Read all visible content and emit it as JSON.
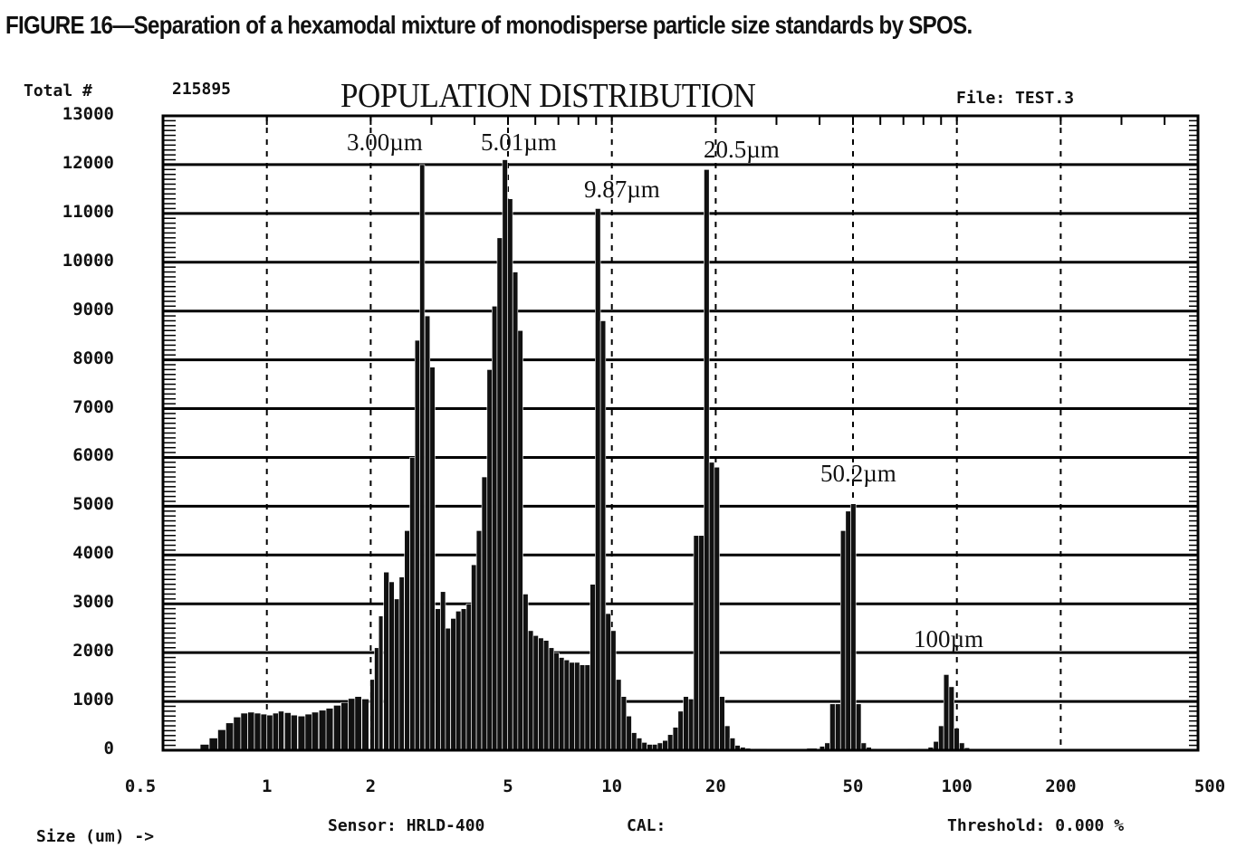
{
  "caption": "FIGURE 16—Separation of a hexamodal mixture of monodisperse particle size standards by SPOS.",
  "header": {
    "total_label": "Total #",
    "total_value": "215895",
    "file_label": "File: TEST.3"
  },
  "footer": {
    "xaxis_label": "Size (um) ->",
    "sensor": "Sensor: HRLD-400",
    "cal": "CAL:",
    "threshold": "Threshold: 0.000 %"
  },
  "colors": {
    "bars": "#111111",
    "grid": "#000000",
    "background": "#ffffff"
  },
  "chart_data": {
    "type": "bar",
    "title": "POPULATION DISTRIBUTION",
    "xscale": "log",
    "xlim": [
      0.5,
      500
    ],
    "ylim": [
      0,
      13000
    ],
    "grid": true,
    "x_ticks": [
      "0.5",
      "1",
      "2",
      "5",
      "10",
      "20",
      "50",
      "100",
      "200",
      "500"
    ],
    "y_ticks": [
      "0",
      "1000",
      "2000",
      "3000",
      "4000",
      "5000",
      "6000",
      "7000",
      "8000",
      "9000",
      "10000",
      "11000",
      "12000",
      "13000"
    ],
    "annotations": [
      "3.00µm",
      "5.01µm",
      "9.87µm",
      "20.5µm",
      "50.2µm",
      "100µm"
    ],
    "bins": [
      [
        0.62,
        30
      ],
      [
        0.66,
        120
      ],
      [
        0.7,
        250
      ],
      [
        0.74,
        420
      ],
      [
        0.78,
        560
      ],
      [
        0.82,
        680
      ],
      [
        0.86,
        760
      ],
      [
        0.9,
        780
      ],
      [
        0.94,
        760
      ],
      [
        0.98,
        740
      ],
      [
        1.02,
        720
      ],
      [
        1.06,
        760
      ],
      [
        1.1,
        800
      ],
      [
        1.15,
        770
      ],
      [
        1.2,
        720
      ],
      [
        1.26,
        700
      ],
      [
        1.32,
        740
      ],
      [
        1.38,
        780
      ],
      [
        1.45,
        820
      ],
      [
        1.52,
        860
      ],
      [
        1.6,
        920
      ],
      [
        1.68,
        980
      ],
      [
        1.76,
        1060
      ],
      [
        1.84,
        1100
      ],
      [
        1.93,
        1050
      ],
      [
        2.02,
        1450
      ],
      [
        2.08,
        2100
      ],
      [
        2.14,
        2750
      ],
      [
        2.22,
        3650
      ],
      [
        2.3,
        3450
      ],
      [
        2.38,
        3100
      ],
      [
        2.46,
        3550
      ],
      [
        2.55,
        4500
      ],
      [
        2.64,
        6000
      ],
      [
        2.73,
        8400
      ],
      [
        2.82,
        12000
      ],
      [
        2.92,
        8900
      ],
      [
        3.02,
        7850
      ],
      [
        3.13,
        2900
      ],
      [
        3.24,
        3250
      ],
      [
        3.35,
        2500
      ],
      [
        3.47,
        2700
      ],
      [
        3.59,
        2850
      ],
      [
        3.72,
        2900
      ],
      [
        3.85,
        3000
      ],
      [
        3.98,
        3800
      ],
      [
        4.12,
        4500
      ],
      [
        4.27,
        5600
      ],
      [
        4.42,
        7800
      ],
      [
        4.57,
        9100
      ],
      [
        4.73,
        10500
      ],
      [
        4.9,
        12100
      ],
      [
        5.07,
        11300
      ],
      [
        5.25,
        9800
      ],
      [
        5.43,
        8600
      ],
      [
        5.62,
        3200
      ],
      [
        5.82,
        2450
      ],
      [
        6.02,
        2350
      ],
      [
        6.23,
        2300
      ],
      [
        6.45,
        2250
      ],
      [
        6.68,
        2100
      ],
      [
        6.91,
        2000
      ],
      [
        7.15,
        1900
      ],
      [
        7.4,
        1850
      ],
      [
        7.66,
        1800
      ],
      [
        7.93,
        1800
      ],
      [
        8.21,
        1750
      ],
      [
        8.5,
        1750
      ],
      [
        8.8,
        3400
      ],
      [
        9.11,
        11100
      ],
      [
        9.43,
        8800
      ],
      [
        9.76,
        2800
      ],
      [
        10.1,
        2450
      ],
      [
        10.46,
        1450
      ],
      [
        10.83,
        1100
      ],
      [
        11.21,
        700
      ],
      [
        11.6,
        360
      ],
      [
        12.01,
        250
      ],
      [
        12.43,
        160
      ],
      [
        12.87,
        120
      ],
      [
        13.32,
        120
      ],
      [
        13.79,
        150
      ],
      [
        14.27,
        200
      ],
      [
        14.77,
        320
      ],
      [
        15.29,
        470
      ],
      [
        15.83,
        800
      ],
      [
        16.39,
        1100
      ],
      [
        16.96,
        1050
      ],
      [
        17.56,
        4400
      ],
      [
        18.18,
        4400
      ],
      [
        18.82,
        11900
      ],
      [
        19.48,
        5900
      ],
      [
        20.16,
        5800
      ],
      [
        20.87,
        1100
      ],
      [
        21.61,
        500
      ],
      [
        22.37,
        250
      ],
      [
        23.15,
        100
      ],
      [
        23.97,
        60
      ],
      [
        24.81,
        40
      ],
      [
        27.0,
        30
      ],
      [
        32.0,
        20
      ],
      [
        38.0,
        40
      ],
      [
        40.7,
        80
      ],
      [
        42.1,
        150
      ],
      [
        43.6,
        950
      ],
      [
        45.2,
        950
      ],
      [
        46.8,
        4500
      ],
      [
        48.4,
        4900
      ],
      [
        50.1,
        5050
      ],
      [
        51.9,
        950
      ],
      [
        53.7,
        150
      ],
      [
        55.6,
        60
      ],
      [
        57.5,
        30
      ],
      [
        65.0,
        20
      ],
      [
        75.0,
        30
      ],
      [
        84.0,
        60
      ],
      [
        87.0,
        180
      ],
      [
        90.0,
        500
      ],
      [
        93.2,
        1550
      ],
      [
        96.5,
        1300
      ],
      [
        99.9,
        450
      ],
      [
        103.4,
        150
      ],
      [
        107.0,
        50
      ],
      [
        111.0,
        20
      ]
    ]
  }
}
